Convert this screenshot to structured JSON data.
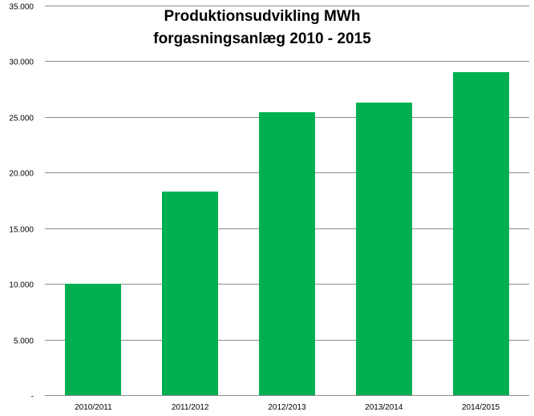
{
  "chart_data": {
    "type": "bar",
    "title_lines": [
      "Produktionsudvikling MWh",
      "forgasningsanlæg  2010 - 2015"
    ],
    "categories": [
      "2010/2011",
      "2011/2012",
      "2012/2013",
      "2013/2014",
      "2014/2015"
    ],
    "values": [
      10000,
      18300,
      25400,
      26300,
      29000
    ],
    "ylim": [
      0,
      35000
    ],
    "yticks": [
      {
        "value": 0,
        "label": "-"
      },
      {
        "value": 5000,
        "label": "5.000"
      },
      {
        "value": 10000,
        "label": "10.000"
      },
      {
        "value": 15000,
        "label": "15.000"
      },
      {
        "value": 20000,
        "label": "20.000"
      },
      {
        "value": 25000,
        "label": "25.000"
      },
      {
        "value": 30000,
        "label": "30.000"
      },
      {
        "value": 35000,
        "label": "35.000"
      }
    ],
    "grid": true,
    "legend": "none",
    "bar_color": "#00b050",
    "gridline_color": "#8c8c8c"
  }
}
